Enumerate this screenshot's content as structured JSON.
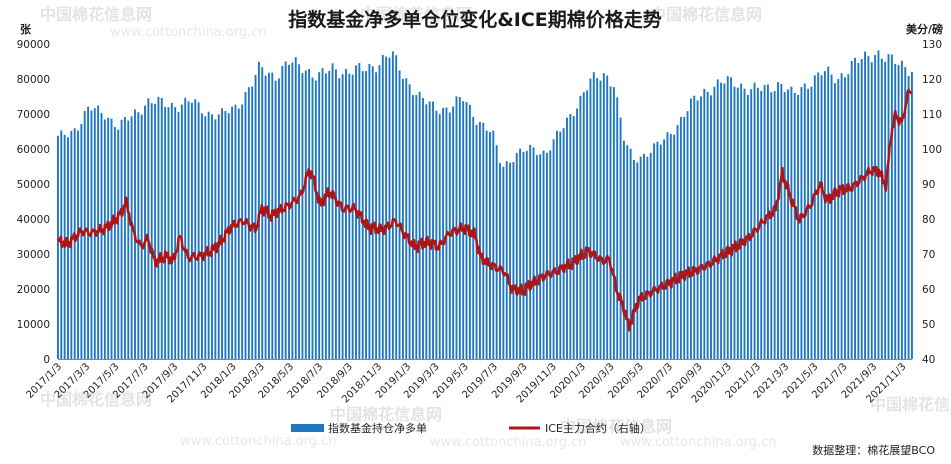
{
  "chart_data": {
    "type": "bar+line",
    "title": "指数基金净多单仓位变化&ICE期棉价格走势",
    "left_unit": "张",
    "right_unit": "美分/磅",
    "y_left": {
      "min": 0,
      "max": 90000,
      "step": 10000,
      "ticks": [
        "0",
        "10000",
        "20000",
        "30000",
        "40000",
        "50000",
        "60000",
        "70000",
        "80000",
        "90000"
      ]
    },
    "y_right": {
      "min": 40,
      "max": 130,
      "step": 10,
      "ticks": [
        "40",
        "50",
        "60",
        "70",
        "80",
        "90",
        "100",
        "110",
        "120",
        "130"
      ]
    },
    "x_range": [
      "2017/1/3",
      "2021/11/23"
    ],
    "x_ticks": [
      "2017/1/3",
      "2017/3/3",
      "2017/5/3",
      "2017/7/3",
      "2017/9/3",
      "2017/11/3",
      "2018/1/3",
      "2018/3/3",
      "2018/5/3",
      "2018/7/3",
      "2018/9/3",
      "2018/11/3",
      "2019/1/3",
      "2019/3/3",
      "2019/5/3",
      "2019/7/3",
      "2019/9/3",
      "2019/11/3",
      "2020/1/3",
      "2020/3/3",
      "2020/5/3",
      "2020/7/3",
      "2020/9/3",
      "2020/11/3",
      "2021/1/3",
      "2021/3/3",
      "2021/5/3",
      "2021/7/3",
      "2021/9/3",
      "2021/11/3"
    ],
    "series": [
      {
        "name": "指数基金持仓净多单",
        "kind": "bar",
        "axis": "left",
        "color": "#1f77c4",
        "keypoints": [
          [
            "2017/1/3",
            63000
          ],
          [
            "2017/2/10",
            66000
          ],
          [
            "2017/3/10",
            71500
          ],
          [
            "2017/4/10",
            70500
          ],
          [
            "2017/5/10",
            66000
          ],
          [
            "2017/6/10",
            70000
          ],
          [
            "2017/7/10",
            73500
          ],
          [
            "2017/8/10",
            73000
          ],
          [
            "2017/9/10",
            72500
          ],
          [
            "2017/10/10",
            73500
          ],
          [
            "2017/11/10",
            70500
          ],
          [
            "2017/12/10",
            69500
          ],
          [
            "2018/1/10",
            72000
          ],
          [
            "2018/2/10",
            78000
          ],
          [
            "2018/3/1",
            83000
          ],
          [
            "2018/4/1",
            81000
          ],
          [
            "2018/5/1",
            84500
          ],
          [
            "2018/6/1",
            83500
          ],
          [
            "2018/7/1",
            80500
          ],
          [
            "2018/8/1",
            83000
          ],
          [
            "2018/9/1",
            82000
          ],
          [
            "2018/10/1",
            82500
          ],
          [
            "2018/11/1",
            84500
          ],
          [
            "2018/12/1",
            87000
          ],
          [
            "2019/1/1",
            80000
          ],
          [
            "2019/2/1",
            74000
          ],
          [
            "2019/3/1",
            72000
          ],
          [
            "2019/4/1",
            71500
          ],
          [
            "2019/5/1",
            74500
          ],
          [
            "2019/6/1",
            68000
          ],
          [
            "2019/7/1",
            64000
          ],
          [
            "2019/7/20",
            55000
          ],
          [
            "2019/8/20",
            58500
          ],
          [
            "2019/9/20",
            60000
          ],
          [
            "2019/10/20",
            59000
          ],
          [
            "2019/11/20",
            65000
          ],
          [
            "2019/12/20",
            72000
          ],
          [
            "2020/1/20",
            79000
          ],
          [
            "2020/2/20",
            81500
          ],
          [
            "2020/3/10",
            79000
          ],
          [
            "2020/4/1",
            62000
          ],
          [
            "2020/4/20",
            57000
          ],
          [
            "2020/5/20",
            59000
          ],
          [
            "2020/6/20",
            62000
          ],
          [
            "2020/7/20",
            67000
          ],
          [
            "2020/8/20",
            73000
          ],
          [
            "2020/9/20",
            77000
          ],
          [
            "2020/10/20",
            79000
          ],
          [
            "2020/11/20",
            79000
          ],
          [
            "2020/12/20",
            77000
          ],
          [
            "2021/1/20",
            77000
          ],
          [
            "2021/2/20",
            79000
          ],
          [
            "2021/3/20",
            75000
          ],
          [
            "2021/4/20",
            79000
          ],
          [
            "2021/5/20",
            82000
          ],
          [
            "2021/6/20",
            80000
          ],
          [
            "2021/7/20",
            84000
          ],
          [
            "2021/8/20",
            86000
          ],
          [
            "2021/9/10",
            88000
          ],
          [
            "2021/10/10",
            85000
          ],
          [
            "2021/11/23",
            83000
          ]
        ]
      },
      {
        "name": "ICE主力合约（右轴）",
        "kind": "line",
        "axis": "right",
        "color": "#b01515",
        "keypoints": [
          [
            "2017/1/3",
            73.5
          ],
          [
            "2017/1/25",
            73
          ],
          [
            "2017/2/20",
            76.5
          ],
          [
            "2017/3/15",
            76
          ],
          [
            "2017/4/15",
            77.5
          ],
          [
            "2017/5/15",
            81.5
          ],
          [
            "2017/5/25",
            85
          ],
          [
            "2017/6/10",
            76
          ],
          [
            "2017/6/25",
            72
          ],
          [
            "2017/7/10",
            74.5
          ],
          [
            "2017/7/25",
            67.5
          ],
          [
            "2017/8/15",
            69.5
          ],
          [
            "2017/9/1",
            68
          ],
          [
            "2017/9/15",
            75
          ],
          [
            "2017/10/1",
            69
          ],
          [
            "2017/11/1",
            69.5
          ],
          [
            "2017/12/1",
            72
          ],
          [
            "2018/1/1",
            78
          ],
          [
            "2018/1/25",
            79.5
          ],
          [
            "2018/2/20",
            77
          ],
          [
            "2018/3/5",
            83
          ],
          [
            "2018/3/25",
            81
          ],
          [
            "2018/5/1",
            84
          ],
          [
            "2018/5/25",
            86.5
          ],
          [
            "2018/6/12",
            94
          ],
          [
            "2018/6/20",
            92
          ],
          [
            "2018/7/5",
            84
          ],
          [
            "2018/7/25",
            88
          ],
          [
            "2018/8/20",
            83
          ],
          [
            "2018/9/15",
            83
          ],
          [
            "2018/10/15",
            77.5
          ],
          [
            "2018/11/15",
            77
          ],
          [
            "2018/12/10",
            79.5
          ],
          [
            "2019/1/1",
            75
          ],
          [
            "2019/1/20",
            72
          ],
          [
            "2019/2/15",
            73.5
          ],
          [
            "2019/3/10",
            72
          ],
          [
            "2019/4/1",
            76
          ],
          [
            "2019/5/1",
            77.5
          ],
          [
            "2019/5/25",
            75.5
          ],
          [
            "2019/6/5",
            69
          ],
          [
            "2019/6/25",
            67
          ],
          [
            "2019/7/25",
            65
          ],
          [
            "2019/8/10",
            60
          ],
          [
            "2019/9/1",
            59.5
          ],
          [
            "2019/9/20",
            61.5
          ],
          [
            "2019/10/20",
            64
          ],
          [
            "2019/11/10",
            65
          ],
          [
            "2019/12/15",
            67.5
          ],
          [
            "2020/1/15",
            71
          ],
          [
            "2020/2/15",
            68
          ],
          [
            "2020/3/1",
            68.5
          ],
          [
            "2020/3/15",
            60
          ],
          [
            "2020/4/1",
            54
          ],
          [
            "2020/4/10",
            49
          ],
          [
            "2020/5/1",
            57
          ],
          [
            "2020/6/1",
            59.5
          ],
          [
            "2020/7/1",
            61.5
          ],
          [
            "2020/8/1",
            64
          ],
          [
            "2020/9/1",
            65.5
          ],
          [
            "2020/10/1",
            67.5
          ],
          [
            "2020/10/25",
            70
          ],
          [
            "2020/11/20",
            72
          ],
          [
            "2020/12/20",
            75
          ],
          [
            "2021/1/20",
            80
          ],
          [
            "2021/2/10",
            82.5
          ],
          [
            "2021/2/25",
            93
          ],
          [
            "2021/3/15",
            86
          ],
          [
            "2021/4/1",
            79.5
          ],
          [
            "2021/4/25",
            84
          ],
          [
            "2021/5/15",
            90
          ],
          [
            "2021/5/30",
            85
          ],
          [
            "2021/6/20",
            88
          ],
          [
            "2021/7/20",
            89
          ],
          [
            "2021/8/10",
            91.5
          ],
          [
            "2021/8/30",
            94
          ],
          [
            "2021/9/15",
            93.5
          ],
          [
            "2021/9/30",
            89.5
          ],
          [
            "2021/10/10",
            104
          ],
          [
            "2021/10/20",
            110
          ],
          [
            "2021/11/1",
            107
          ],
          [
            "2021/11/15",
            116
          ],
          [
            "2021/11/23",
            117
          ]
        ]
      }
    ],
    "legend": {
      "position": "bottom",
      "entries": [
        "指数基金持仓净多单",
        "ICE主力合约（右轴）"
      ]
    },
    "source": "数据整理：棉花展望BCO",
    "grid": false
  },
  "watermark": {
    "text": "中国棉花信息网",
    "url": "www.cottonchina.org.cn"
  }
}
